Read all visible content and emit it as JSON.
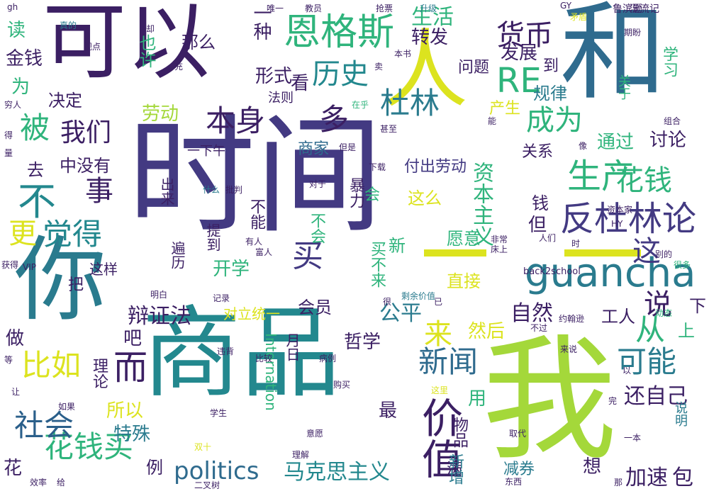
{
  "palette": {
    "purple": "#3b1f63",
    "indigo": "#433a82",
    "blue": "#2f6b8e",
    "teal": "#23888e",
    "green": "#2fb47c",
    "lime": "#9fd938",
    "yellow": "#dfe31a"
  },
  "words": [
    {
      "text": "时间",
      "color": "#433a82",
      "size": 180,
      "v": false
    },
    {
      "text": "商品",
      "color": "#23888e",
      "size": 140,
      "v": false
    },
    {
      "text": "我",
      "color": "#a4d83a",
      "size": 190,
      "v": false
    },
    {
      "text": "你",
      "color": "#2a7b8e",
      "size": 130,
      "v": false
    },
    {
      "text": "可以",
      "color": "#3b1f63",
      "size": 118,
      "v": false
    },
    {
      "text": "和",
      "color": "#2f6b8e",
      "size": 150,
      "v": false
    },
    {
      "text": "人",
      "color": "#dce31f",
      "size": 120,
      "v": false
    },
    {
      "text": "恩格斯",
      "color": "#2fb47c",
      "size": 52,
      "v": false
    },
    {
      "text": "guancha",
      "color": "#2a7b8e",
      "size": 56,
      "v": false
    },
    {
      "text": "价值",
      "color": "#3b1f63",
      "size": 58,
      "v": true
    },
    {
      "text": "反杜林论",
      "color": "#433a82",
      "size": 48,
      "v": false
    },
    {
      "text": "生产",
      "color": "#2fb47c",
      "size": 48,
      "v": false
    },
    {
      "text": "花钱买",
      "color": "#2fb47c",
      "size": 42,
      "v": false
    },
    {
      "text": "社会",
      "color": "#2a5f8a",
      "size": 42,
      "v": false
    },
    {
      "text": "比如",
      "color": "#dce31f",
      "size": 42,
      "v": false
    },
    {
      "text": "新闻",
      "color": "#2f6b8e",
      "size": 42,
      "v": false
    },
    {
      "text": "可能",
      "color": "#2a7b8e",
      "size": 42,
      "v": false
    },
    {
      "text": "成为",
      "color": "#2fb47c",
      "size": 40,
      "v": false
    },
    {
      "text": "杜林",
      "color": "#2a7b8e",
      "size": 42,
      "v": false
    },
    {
      "text": "本身",
      "color": "#3b1f63",
      "size": 42,
      "v": false
    },
    {
      "text": "历史",
      "color": "#23888e",
      "size": 40,
      "v": false
    },
    {
      "text": "货币",
      "color": "#3b1f63",
      "size": 40,
      "v": false
    },
    {
      "text": "RE",
      "color": "#2fb47c",
      "size": 48,
      "v": false
    },
    {
      "text": "觉得",
      "color": "#23888e",
      "size": 42,
      "v": false
    },
    {
      "text": "更",
      "color": "#dce31f",
      "size": 40,
      "v": false
    },
    {
      "text": "不",
      "color": "#23888e",
      "size": 54,
      "v": false
    },
    {
      "text": "被",
      "color": "#2fb47c",
      "size": 42,
      "v": false
    },
    {
      "text": "多",
      "color": "#3b1f63",
      "size": 42,
      "v": false
    },
    {
      "text": "我们",
      "color": "#3b1f63",
      "size": 36,
      "v": false
    },
    {
      "text": "事",
      "color": "#3b1f63",
      "size": 40,
      "v": false
    },
    {
      "text": "而",
      "color": "#3b1f63",
      "size": 48,
      "v": false
    },
    {
      "text": "来",
      "color": "#dce31f",
      "size": 40,
      "v": false
    },
    {
      "text": "说",
      "color": "#3b1f63",
      "size": 40,
      "v": false
    },
    {
      "text": "买",
      "color": "#433a82",
      "size": 44,
      "v": false
    },
    {
      "text": "这",
      "color": "#433a82",
      "size": 40,
      "v": false
    },
    {
      "text": "从",
      "color": "#2fb47c",
      "size": 42,
      "v": false
    },
    {
      "text": "花钱",
      "color": "#2fb47c",
      "size": 40,
      "v": false
    },
    {
      "text": "politics",
      "color": "#2f6b8e",
      "size": 34,
      "v": false
    },
    {
      "text": "马克思主义",
      "color": "#23888e",
      "size": 30,
      "v": false
    },
    {
      "text": "资本主义",
      "color": "#2fb47c",
      "size": 30,
      "v": true
    },
    {
      "text": "自然",
      "color": "#3b1f63",
      "size": 30,
      "v": false
    },
    {
      "text": "辩证法",
      "color": "#3b1f63",
      "size": 30,
      "v": false
    },
    {
      "text": "还自己",
      "color": "#3b1f63",
      "size": 30,
      "v": false
    },
    {
      "text": "加速",
      "color": "#3b1f63",
      "size": 30,
      "v": false
    },
    {
      "text": "包",
      "color": "#3b1f63",
      "size": 30,
      "v": false
    },
    {
      "text": "公平",
      "color": "#2a7b8e",
      "size": 30,
      "v": false
    },
    {
      "text": "开学",
      "color": "#2fb47c",
      "size": 26,
      "v": false
    },
    {
      "text": "劳动",
      "color": "#a4d83a",
      "size": 26,
      "v": false
    },
    {
      "text": "所以",
      "color": "#dce31f",
      "size": 26,
      "v": false
    },
    {
      "text": "特殊",
      "color": "#2a7b8e",
      "size": 26,
      "v": false
    },
    {
      "text": "生活",
      "color": "#2fb47c",
      "size": 30,
      "v": false
    },
    {
      "text": "转发",
      "color": "#3b1f63",
      "size": 26,
      "v": false
    },
    {
      "text": "发展",
      "color": "#3b1f63",
      "size": 26,
      "v": false
    },
    {
      "text": "哲学",
      "color": "#3b1f63",
      "size": 26,
      "v": false
    },
    {
      "text": "会员",
      "color": "#3b1f63",
      "size": 24,
      "v": false
    },
    {
      "text": "然后",
      "color": "#dce31f",
      "size": 26,
      "v": false
    },
    {
      "text": "工人",
      "color": "#3b1f63",
      "size": 24,
      "v": false
    },
    {
      "text": "付出劳动",
      "color": "#433a82",
      "size": 22,
      "v": false
    },
    {
      "text": "通过",
      "color": "#2fb47c",
      "size": 26,
      "v": false
    },
    {
      "text": "讨论",
      "color": "#3b1f63",
      "size": 26,
      "v": false
    },
    {
      "text": "规律",
      "color": "#2a7b8e",
      "size": 24,
      "v": false
    },
    {
      "text": "形式",
      "color": "#3b1f63",
      "size": 26,
      "v": false
    },
    {
      "text": "直接",
      "color": "#dce31f",
      "size": 24,
      "v": false
    },
    {
      "text": "愿意",
      "color": "#2fb47c",
      "size": 24,
      "v": false
    },
    {
      "text": "这么",
      "color": "#dce31f",
      "size": 24,
      "v": false
    },
    {
      "text": "最",
      "color": "#3b1f63",
      "size": 26,
      "v": false
    },
    {
      "text": "用",
      "color": "#2fb47c",
      "size": 26,
      "v": false
    },
    {
      "text": "想",
      "color": "#3b1f63",
      "size": 26,
      "v": false
    },
    {
      "text": "例",
      "color": "#3b1f63",
      "size": 24,
      "v": false
    },
    {
      "text": "花",
      "color": "#3b1f63",
      "size": 26,
      "v": false
    },
    {
      "text": "读",
      "color": "#2fb47c",
      "size": 26,
      "v": false
    },
    {
      "text": "金钱",
      "color": "#3b1f63",
      "size": 26,
      "v": false
    },
    {
      "text": "为",
      "color": "#2fb47c",
      "size": 26,
      "v": false
    },
    {
      "text": "决定",
      "color": "#3b1f63",
      "size": 24,
      "v": false
    },
    {
      "text": "那么",
      "color": "#3b1f63",
      "size": 24,
      "v": false
    },
    {
      "text": "看",
      "color": "#3b1f63",
      "size": 26,
      "v": false
    },
    {
      "text": "一种",
      "color": "#3b1f63",
      "size": 26,
      "v": true
    },
    {
      "text": "中没有",
      "color": "#3b1f63",
      "size": 24,
      "v": false
    },
    {
      "text": "去",
      "color": "#3b1f63",
      "size": 24,
      "v": false
    },
    {
      "text": "钱",
      "color": "#3b1f63",
      "size": 24,
      "v": false
    },
    {
      "text": "但",
      "color": "#3b1f63",
      "size": 26,
      "v": false
    },
    {
      "text": "做",
      "color": "#3b1f63",
      "size": 26,
      "v": false
    },
    {
      "text": "吧",
      "color": "#3b1f63",
      "size": 26,
      "v": false
    },
    {
      "text": "上",
      "color": "#2fb47c",
      "size": 24,
      "v": false
    },
    {
      "text": "下",
      "color": "#3b1f63",
      "size": 24,
      "v": false
    },
    {
      "text": "问题",
      "color": "#3b1f63",
      "size": 22,
      "v": false
    },
    {
      "text": "到",
      "color": "#3b1f63",
      "size": 22,
      "v": false
    },
    {
      "text": "商家",
      "color": "#2f6b8e",
      "size": 22,
      "v": false
    },
    {
      "text": "关系",
      "color": "#3b1f63",
      "size": 22,
      "v": false
    },
    {
      "text": "产生",
      "color": "#dce31f",
      "size": 22,
      "v": false
    },
    {
      "text": "也许",
      "color": "#2fb47c",
      "size": 24,
      "v": true
    },
    {
      "text": "理论",
      "color": "#3b1f63",
      "size": 22,
      "v": true
    },
    {
      "text": "学习",
      "color": "#2fb47c",
      "size": 22,
      "v": true
    },
    {
      "text": "对立统一",
      "color": "#dce31f",
      "size": 20,
      "v": false
    },
    {
      "text": "这样",
      "color": "#3b1f63",
      "size": 20,
      "v": false
    },
    {
      "text": "把",
      "color": "#3b1f63",
      "size": 22,
      "v": false
    },
    {
      "text": "暴力",
      "color": "#3b1f63",
      "size": 22,
      "v": true
    },
    {
      "text": "不能",
      "color": "#3b1f63",
      "size": 22,
      "v": true
    },
    {
      "text": "不会",
      "color": "#2fb47c",
      "size": 22,
      "v": true
    },
    {
      "text": "会",
      "color": "#2fb47c",
      "size": 22,
      "v": false
    },
    {
      "text": "新",
      "color": "#2fb47c",
      "size": 24,
      "v": false
    },
    {
      "text": "出来",
      "color": "#3b1f63",
      "size": 20,
      "v": true
    },
    {
      "text": "买不来",
      "color": "#2fb47c",
      "size": 22,
      "v": true
    },
    {
      "text": "提到",
      "color": "#3b1f63",
      "size": 20,
      "v": true
    },
    {
      "text": "遍历",
      "color": "#3b1f63",
      "size": 20,
      "v": true
    },
    {
      "text": "物品",
      "color": "#3b1f63",
      "size": 22,
      "v": true
    },
    {
      "text": "满",
      "color": "#3b1f63",
      "size": 22,
      "v": false
    },
    {
      "text": "减券",
      "color": "#2a7b8e",
      "size": 22,
      "v": false
    },
    {
      "text": "新增",
      "color": "#2a7b8e",
      "size": 22,
      "v": true
    },
    {
      "text": "说明",
      "color": "#2a7b8e",
      "size": 18,
      "v": true
    },
    {
      "text": "Internation",
      "color": "#2fb47c",
      "size": 20,
      "v": true
    },
    {
      "text": "月日",
      "color": "#3b1f63",
      "size": 20,
      "v": true
    },
    {
      "text": "一下午",
      "color": "#3b1f63",
      "size": 18,
      "v": false
    },
    {
      "text": "法则",
      "color": "#3b1f63",
      "size": 18,
      "v": false
    },
    {
      "text": "关于",
      "color": "#2fb47c",
      "size": 18,
      "v": true
    },
    {
      "text": "鲁滨逊",
      "color": "#3b1f63",
      "size": 14,
      "v": false
    },
    {
      "text": "漂流记",
      "color": "#3b1f63",
      "size": 14,
      "v": false
    },
    {
      "text": "back2school",
      "color": "#3b1f63",
      "size": 13,
      "v": false
    },
    {
      "text": "剩余价值",
      "color": "#2a7b8e",
      "size": 12,
      "v": false
    },
    {
      "text": "约翰逊",
      "color": "#3b1f63",
      "size": 12,
      "v": false
    },
    {
      "text": "唯一",
      "color": "#3b1f63",
      "size": 12,
      "v": false
    },
    {
      "text": "教员",
      "color": "#3b1f63",
      "size": 12,
      "v": false
    },
    {
      "text": "抢票",
      "color": "#3b1f63",
      "size": 12,
      "v": false
    },
    {
      "text": "升级",
      "color": "#2a7b8e",
      "size": 12,
      "v": false
    },
    {
      "text": "GY",
      "color": "#3b1f63",
      "size": 12,
      "v": false
    },
    {
      "text": "期盼",
      "color": "#3b1f63",
      "size": 12,
      "v": false
    },
    {
      "text": "矛盾",
      "color": "#dce31f",
      "size": 12,
      "v": false
    },
    {
      "text": "真的",
      "color": "#2a7b8e",
      "size": 12,
      "v": false
    },
    {
      "text": "观点",
      "color": "#3b1f63",
      "size": 12,
      "v": false
    },
    {
      "text": "本书",
      "color": "#3b1f63",
      "size": 12,
      "v": false
    },
    {
      "text": "卖",
      "color": "#3b1f63",
      "size": 12,
      "v": false
    },
    {
      "text": "在乎",
      "color": "#2fb47c",
      "size": 12,
      "v": false
    },
    {
      "text": "甚至",
      "color": "#3b1f63",
      "size": 12,
      "v": false
    },
    {
      "text": "但是",
      "color": "#3b1f63",
      "size": 12,
      "v": false
    },
    {
      "text": "下载",
      "color": "#3b1f63",
      "size": 12,
      "v": false
    },
    {
      "text": "对于",
      "color": "#3b1f63",
      "size": 12,
      "v": false
    },
    {
      "text": "批判",
      "color": "#3b1f63",
      "size": 12,
      "v": false
    },
    {
      "text": "什么",
      "color": "#2a7b8e",
      "size": 12,
      "v": false
    },
    {
      "text": "资本家",
      "color": "#3b1f63",
      "size": 12,
      "v": false
    },
    {
      "text": "HY",
      "color": "#3b1f63",
      "size": 12,
      "v": false
    },
    {
      "text": "人们",
      "color": "#3b1f63",
      "size": 12,
      "v": false
    },
    {
      "text": "时",
      "color": "#3b1f63",
      "size": 12,
      "v": false
    },
    {
      "text": "非常",
      "color": "#3b1f63",
      "size": 12,
      "v": false
    },
    {
      "text": "床上",
      "color": "#3b1f63",
      "size": 12,
      "v": false
    },
    {
      "text": "有人",
      "color": "#3b1f63",
      "size": 12,
      "v": false
    },
    {
      "text": "富人",
      "color": "#3b1f63",
      "size": 12,
      "v": false
    },
    {
      "text": "明白",
      "color": "#3b1f63",
      "size": 12,
      "v": false
    },
    {
      "text": "记录",
      "color": "#3b1f63",
      "size": 12,
      "v": false
    },
    {
      "text": "很",
      "color": "#3b1f63",
      "size": 12,
      "v": false
    },
    {
      "text": "已",
      "color": "#3b1f63",
      "size": 12,
      "v": false
    },
    {
      "text": "不过",
      "color": "#3b1f63",
      "size": 12,
      "v": false
    },
    {
      "text": "违背",
      "color": "#3b1f63",
      "size": 12,
      "v": false
    },
    {
      "text": "比较",
      "color": "#3b1f63",
      "size": 12,
      "v": false
    },
    {
      "text": "病例",
      "color": "#3b1f63",
      "size": 12,
      "v": false
    },
    {
      "text": "来说",
      "color": "#3b1f63",
      "size": 12,
      "v": false
    },
    {
      "text": "购买",
      "color": "#3b1f63",
      "size": 12,
      "v": false
    },
    {
      "text": "如果",
      "color": "#3b1f63",
      "size": 12,
      "v": false
    },
    {
      "text": "学生",
      "color": "#3b1f63",
      "size": 12,
      "v": false
    },
    {
      "text": "意愿",
      "color": "#3b1f63",
      "size": 12,
      "v": false
    },
    {
      "text": "取代",
      "color": "#3b1f63",
      "size": 12,
      "v": false
    },
    {
      "text": "一本",
      "color": "#3b1f63",
      "size": 12,
      "v": false
    },
    {
      "text": "双十",
      "color": "#dce31f",
      "size": 12,
      "v": false
    },
    {
      "text": "理解",
      "color": "#3b1f63",
      "size": 12,
      "v": false
    },
    {
      "text": "东西",
      "color": "#3b1f63",
      "size": 12,
      "v": false
    },
    {
      "text": "二叉树",
      "color": "#3b1f63",
      "size": 12,
      "v": false
    },
    {
      "text": "效率",
      "color": "#3b1f63",
      "size": 12,
      "v": false
    },
    {
      "text": "给",
      "color": "#3b1f63",
      "size": 12,
      "v": false
    },
    {
      "text": "获得",
      "color": "#3b1f63",
      "size": 12,
      "v": false
    },
    {
      "text": "VIP",
      "color": "#3b1f63",
      "size": 12,
      "v": false
    },
    {
      "text": "gh",
      "color": "#3b1f63",
      "size": 12,
      "v": false
    },
    {
      "text": "穷人",
      "color": "#3b1f63",
      "size": 12,
      "v": false
    },
    {
      "text": "得",
      "color": "#3b1f63",
      "size": 12,
      "v": false
    },
    {
      "text": "量",
      "color": "#3b1f63",
      "size": 12,
      "v": false
    },
    {
      "text": "等",
      "color": "#3b1f63",
      "size": 12,
      "v": false
    },
    {
      "text": "让",
      "color": "#3b1f63",
      "size": 12,
      "v": false
    },
    {
      "text": "很多",
      "color": "#2fb47c",
      "size": 12,
      "v": false
    },
    {
      "text": "动态",
      "color": "#2fb47c",
      "size": 12,
      "v": false
    },
    {
      "text": "组合",
      "color": "#3b1f63",
      "size": 12,
      "v": false
    },
    {
      "text": "别的",
      "color": "#3b1f63",
      "size": 12,
      "v": false
    },
    {
      "text": "以",
      "color": "#3b1f63",
      "size": 12,
      "v": false
    },
    {
      "text": "完",
      "color": "#3b1f63",
      "size": 12,
      "v": false
    },
    {
      "text": "那",
      "color": "#3b1f63",
      "size": 12,
      "v": false
    },
    {
      "text": "像",
      "color": "#3b1f63",
      "size": 12,
      "v": false
    },
    {
      "text": "能",
      "color": "#3b1f63",
      "size": 12,
      "v": false
    },
    {
      "text": "充",
      "color": "#3b1f63",
      "size": 12,
      "v": false
    },
    {
      "text": "却",
      "color": "#3b1f63",
      "size": 12,
      "v": false
    },
    {
      "text": "这里",
      "color": "#dce31f",
      "size": 12,
      "v": false
    }
  ]
}
